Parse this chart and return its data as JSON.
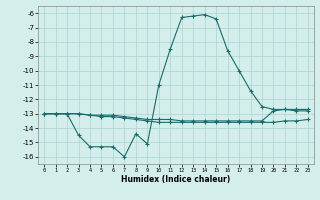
{
  "xlabel": "Humidex (Indice chaleur)",
  "x": [
    0,
    1,
    2,
    3,
    4,
    5,
    6,
    7,
    8,
    9,
    10,
    11,
    12,
    13,
    14,
    15,
    16,
    17,
    18,
    19,
    20,
    21,
    22,
    23
  ],
  "line1": [
    -13.0,
    -13.0,
    -13.0,
    -14.5,
    -15.3,
    -15.3,
    -15.3,
    -16.0,
    -14.4,
    -15.1,
    -11.0,
    -8.5,
    -6.3,
    -6.2,
    -6.1,
    -6.4,
    -8.6,
    -10.0,
    -11.4,
    -12.5,
    -12.7,
    -12.7,
    -12.8,
    -12.8
  ],
  "line2": [
    -13.0,
    -13.0,
    -13.0,
    -13.0,
    -13.1,
    -13.1,
    -13.1,
    -13.2,
    -13.3,
    -13.4,
    -13.4,
    -13.4,
    -13.5,
    -13.5,
    -13.5,
    -13.5,
    -13.5,
    -13.5,
    -13.5,
    -13.5,
    -12.8,
    -12.7,
    -12.7,
    -12.7
  ],
  "line3": [
    -13.0,
    -13.0,
    -13.0,
    -13.0,
    -13.1,
    -13.2,
    -13.2,
    -13.3,
    -13.4,
    -13.5,
    -13.6,
    -13.6,
    -13.6,
    -13.6,
    -13.6,
    -13.6,
    -13.6,
    -13.6,
    -13.6,
    -13.6,
    -13.6,
    -13.5,
    -13.5,
    -13.4
  ],
  "bg_color": "#d4eeec",
  "line_color": "#1a6b6b",
  "grid_color": "#add4d2",
  "ylim": [
    -16.5,
    -5.5
  ],
  "xlim": [
    -0.5,
    23.5
  ],
  "yticks": [
    -6,
    -7,
    -8,
    -9,
    -10,
    -11,
    -12,
    -13,
    -14,
    -15,
    -16
  ],
  "xtick_labels": [
    "0",
    "1",
    "2",
    "3",
    "4",
    "5",
    "6",
    "7",
    "8",
    "9",
    "10",
    "11",
    "12",
    "13",
    "14",
    "15",
    "16",
    "17",
    "18",
    "19",
    "20",
    "21",
    "22",
    "23"
  ]
}
